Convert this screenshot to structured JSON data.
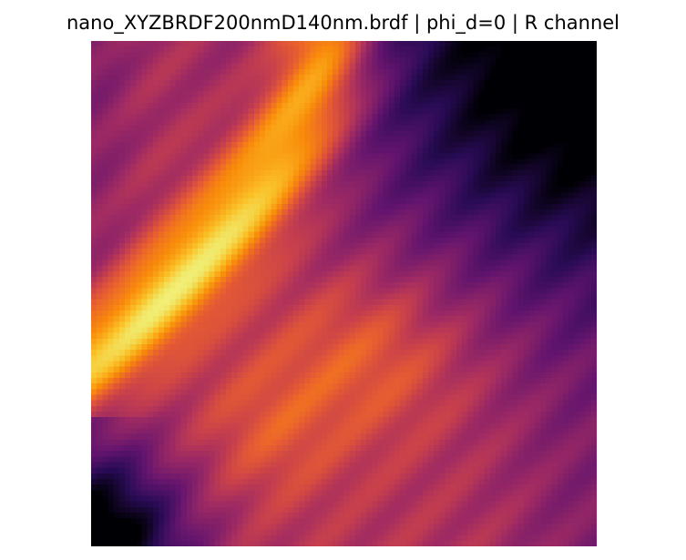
{
  "chart_data": {
    "type": "heatmap",
    "title": "nano_XYZBRDF200nmD140nm.brdf | phi_d=0 | R channel",
    "colormap": "inferno",
    "grid": false,
    "axes_visible": false,
    "legend": "none",
    "colorbar": "none",
    "xlabel": "",
    "ylabel": ""
  }
}
